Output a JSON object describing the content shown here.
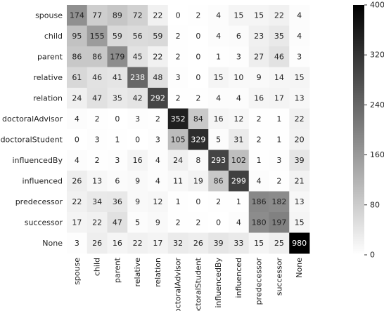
{
  "chart_data": {
    "type": "heatmap",
    "title": "",
    "xlabel": "",
    "ylabel": "",
    "rows": [
      "spouse",
      "child",
      "parent",
      "relative",
      "relation",
      "doctoralAdvisor",
      "doctoralStudent",
      "influencedBy",
      "influenced",
      "predecessor",
      "successor",
      "None"
    ],
    "columns": [
      "spouse",
      "child",
      "parent",
      "relative",
      "relation",
      "doctoralAdvisor",
      "doctoralStudent",
      "influencedBy",
      "influenced",
      "predecessor",
      "successor",
      "None"
    ],
    "values": [
      [
        174,
        77,
        89,
        72,
        22,
        0,
        2,
        4,
        15,
        15,
        22,
        4
      ],
      [
        95,
        155,
        59,
        56,
        59,
        2,
        0,
        4,
        6,
        23,
        35,
        4
      ],
      [
        86,
        86,
        179,
        45,
        22,
        2,
        0,
        1,
        3,
        27,
        46,
        3
      ],
      [
        61,
        46,
        41,
        238,
        48,
        3,
        0,
        15,
        10,
        9,
        14,
        15
      ],
      [
        24,
        47,
        35,
        42,
        292,
        2,
        2,
        4,
        4,
        16,
        17,
        13
      ],
      [
        4,
        2,
        0,
        3,
        2,
        352,
        84,
        16,
        12,
        2,
        1,
        22
      ],
      [
        0,
        3,
        1,
        0,
        3,
        105,
        329,
        5,
        31,
        2,
        1,
        20
      ],
      [
        4,
        2,
        3,
        16,
        4,
        24,
        8,
        293,
        102,
        1,
        3,
        39
      ],
      [
        26,
        13,
        6,
        9,
        4,
        11,
        19,
        86,
        299,
        4,
        2,
        21
      ],
      [
        22,
        34,
        36,
        9,
        12,
        1,
        0,
        2,
        1,
        186,
        182,
        13
      ],
      [
        17,
        22,
        47,
        5,
        9,
        2,
        2,
        0,
        4,
        180,
        197,
        15
      ],
      [
        3,
        26,
        16,
        22,
        17,
        32,
        26,
        39,
        33,
        15,
        25,
        980
      ]
    ],
    "color_scale": {
      "min": 0,
      "max": 400,
      "low_color": "#ffffff",
      "high_color": "#000000"
    },
    "colorbar_ticks": [
      0,
      80,
      160,
      240,
      320,
      400
    ]
  }
}
